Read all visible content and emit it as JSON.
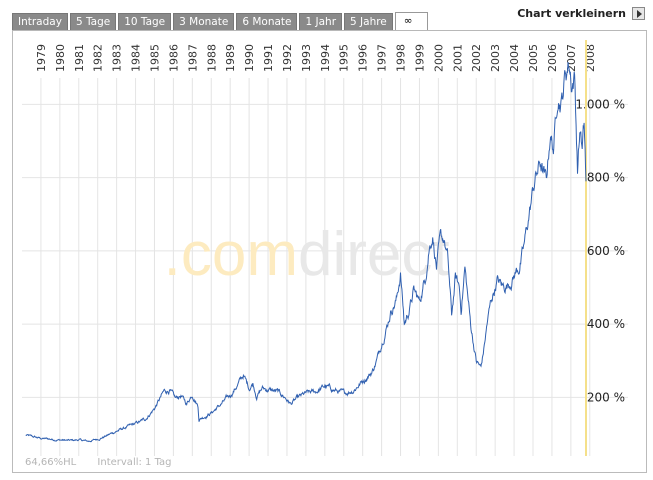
{
  "tabs": [
    {
      "label": "Intraday",
      "active": false
    },
    {
      "label": "5 Tage",
      "active": false
    },
    {
      "label": "10 Tage",
      "active": false
    },
    {
      "label": "3 Monate",
      "active": false
    },
    {
      "label": "6 Monate",
      "active": false
    },
    {
      "label": "1 Jahr",
      "active": false
    },
    {
      "label": "5 Jahre",
      "active": false
    },
    {
      "label": "∞",
      "active": true
    }
  ],
  "shrink_label": "Chart verkleinern",
  "watermark": {
    "part1": ".com",
    "part2": "direct"
  },
  "info": {
    "hl": "64,66%HL",
    "interval": "Intervall: 1 Tag"
  },
  "colors": {
    "line": "#3060b0",
    "grid": "#e4e4e4",
    "marker": "#f5e08a",
    "watermark_orange": "#fdebc0",
    "watermark_grey": "#e8e8e8"
  },
  "chart_data": {
    "type": "line",
    "x_tick_labels": [
      "1979",
      "1980",
      "1981",
      "1982",
      "1983",
      "1984",
      "1985",
      "1986",
      "1987",
      "1988",
      "1989",
      "1990",
      "1991",
      "1992",
      "1993",
      "1994",
      "1995",
      "1996",
      "1997",
      "1998",
      "1999",
      "2000",
      "2001",
      "2002",
      "2003",
      "2004",
      "2005",
      "2006",
      "2007",
      "2008"
    ],
    "y_tick_labels": [
      "200 %",
      "400 %",
      "600 %",
      "800 %",
      "1.000 %"
    ],
    "y_ticks": [
      200,
      400,
      600,
      800,
      1000
    ],
    "xlim": [
      1978.5,
      2008.3
    ],
    "ylim": [
      40,
      1165
    ],
    "grid": true,
    "series": [
      {
        "x": [
          1978.7,
          1979.0,
          1979.5,
          1980.0,
          1980.5,
          1981.0,
          1981.5,
          1982.0,
          1982.5,
          1983.0,
          1983.5,
          1984.0,
          1984.5,
          1985.0,
          1985.5,
          1986.0,
          1986.3,
          1986.6,
          1986.9,
          1987.2,
          1987.5,
          1987.8,
          1987.85,
          1988.0,
          1988.5,
          1989.0,
          1989.5,
          1989.9,
          1990.2,
          1990.5,
          1990.7,
          1990.9,
          1991.2,
          1991.6,
          1992.0,
          1992.4,
          1992.7,
          1993.0,
          1993.5,
          1994.0,
          1994.5,
          1995.0,
          1995.5,
          1996.0,
          1996.5,
          1997.0,
          1997.3,
          1997.6,
          1997.8,
          1998.0,
          1998.3,
          1998.5,
          1998.7,
          1998.9,
          1999.2,
          1999.5,
          1999.8,
          2000.0,
          2000.2,
          2000.4,
          2000.6,
          2000.8,
          2001.0,
          2001.2,
          2001.4,
          2001.6,
          2001.7,
          2001.9,
          2002.2,
          2002.5,
          2002.75,
          2002.9,
          2003.1,
          2003.3,
          2003.6,
          2003.9,
          2004.2,
          2004.5,
          2004.8,
          2005.0,
          2005.3,
          2005.6,
          2005.9,
          2006.2,
          2006.4,
          2006.6,
          2006.8,
          2007.0,
          2007.2,
          2007.4,
          2007.55,
          2007.7,
          2007.85,
          2008.0,
          2008.1,
          2008.2,
          2008.3
        ],
        "values": [
          97,
          93,
          88,
          86,
          84,
          82,
          84,
          80,
          86,
          96,
          108,
          118,
          128,
          140,
          170,
          215,
          220,
          195,
          205,
          182,
          210,
          178,
          140,
          145,
          158,
          180,
          205,
          235,
          260,
          225,
          240,
          205,
          225,
          220,
          215,
          200,
          182,
          195,
          210,
          215,
          230,
          220,
          210,
          220,
          245,
          270,
          310,
          370,
          400,
          440,
          470,
          540,
          400,
          430,
          490,
          460,
          525,
          610,
          650,
          560,
          620,
          630,
          575,
          420,
          525,
          500,
          440,
          555,
          400,
          300,
          280,
          330,
          410,
          465,
          520,
          500,
          510,
          535,
          560,
          600,
          700,
          795,
          840,
          780,
          920,
          880,
          1040,
          1010,
          1080,
          1120,
          1060,
          1080,
          830,
          940,
          870,
          940,
          790
        ]
      }
    ]
  }
}
